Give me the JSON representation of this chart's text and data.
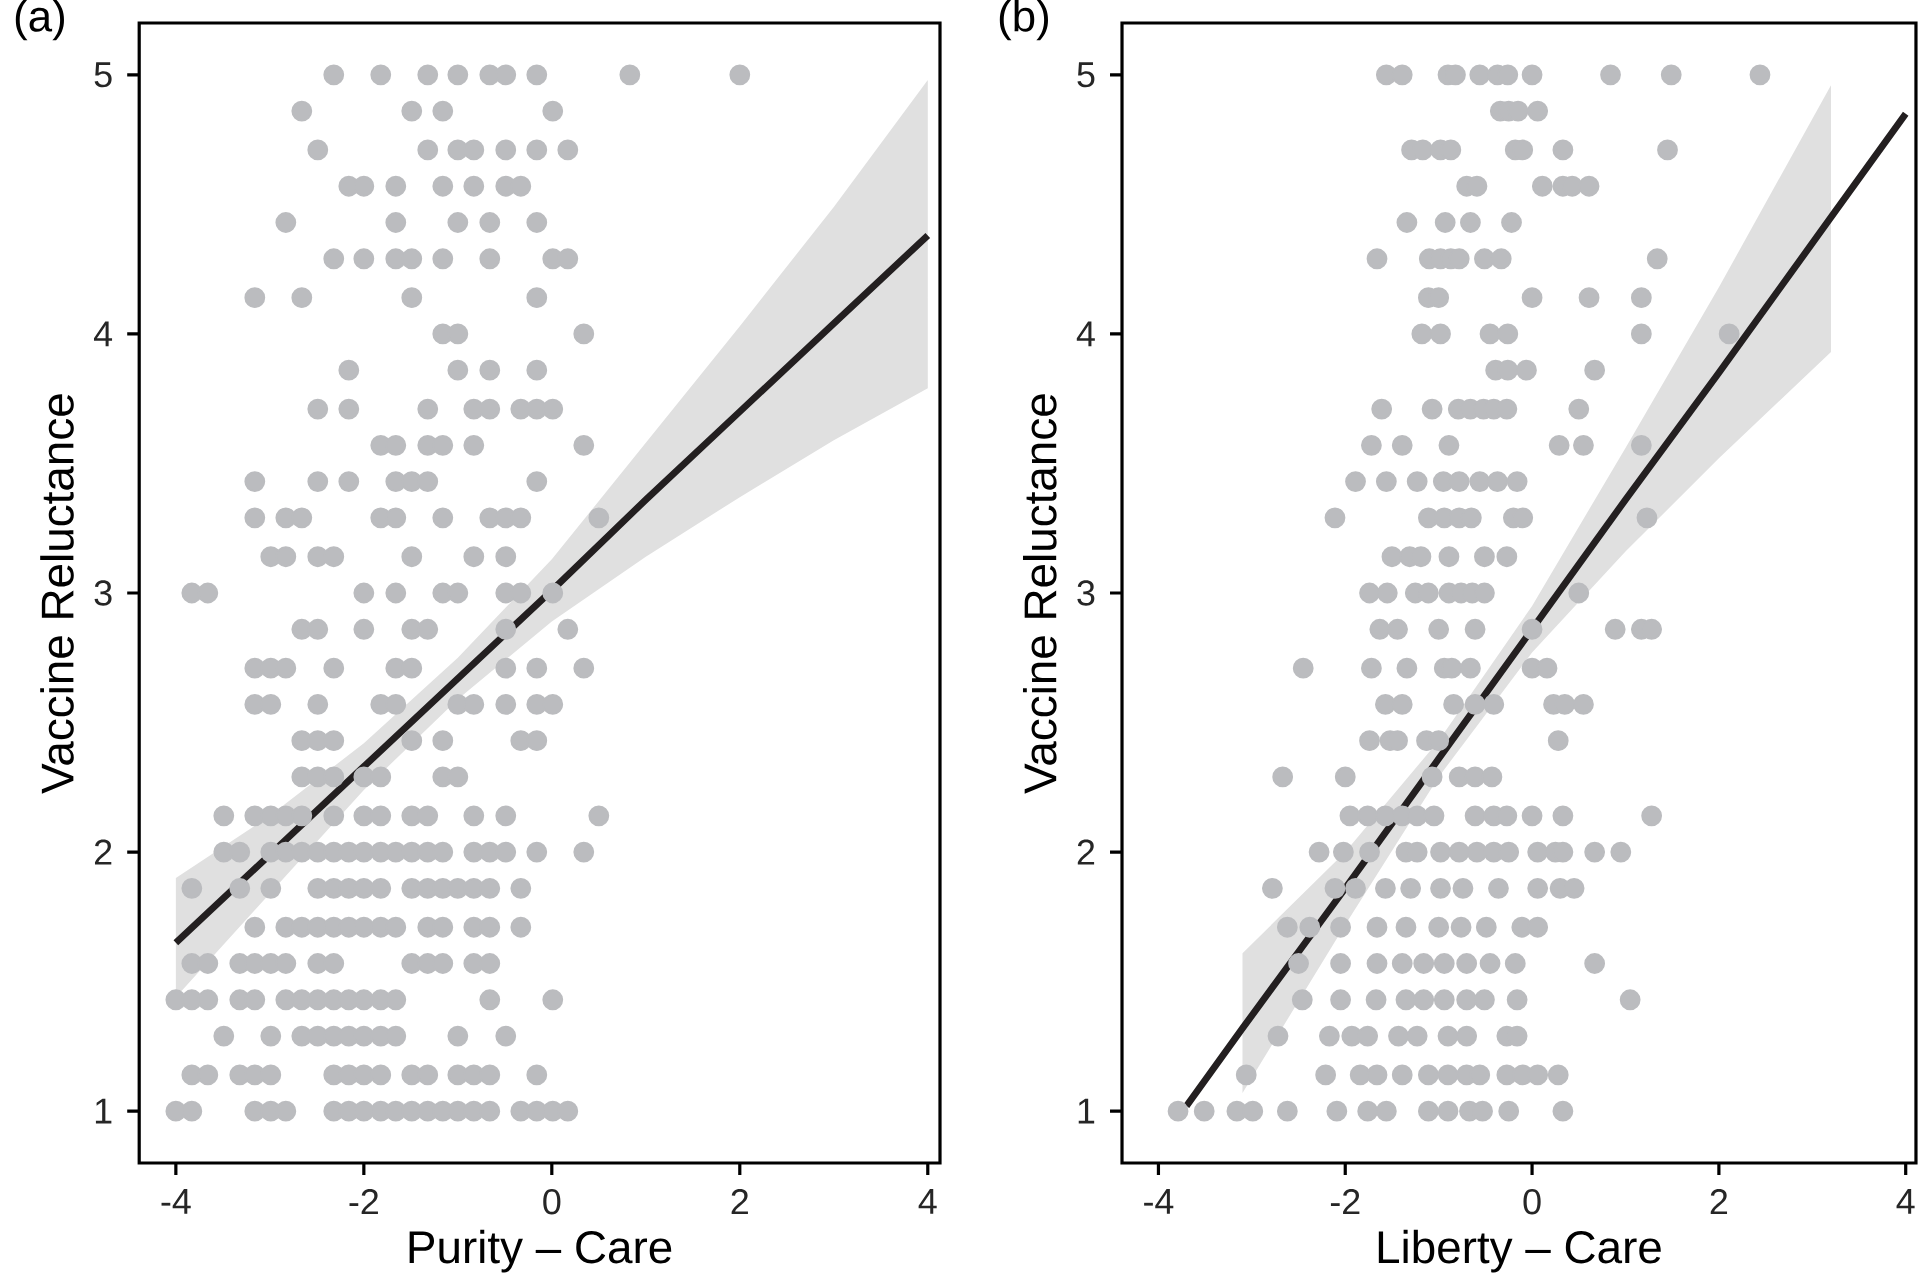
{
  "chart_data": [
    {
      "type": "scatter",
      "title": "(a)",
      "xlabel": "Purity – Care",
      "ylabel": "Vaccine Reluctance",
      "xlim": [
        -4.39,
        4.13
      ],
      "ylim": [
        0.8,
        5.2
      ],
      "xticks": [
        -4,
        -2,
        0,
        2,
        4
      ],
      "yticks": [
        1,
        2,
        3,
        4,
        5
      ],
      "grid": false,
      "marker": "circle",
      "series": [
        {
          "type": "scatter",
          "color": "#bbbcbf",
          "x": [
            -2.32,
            -1.82,
            -1.32,
            -1.0,
            -0.66,
            -0.49,
            -0.16,
            0.83,
            2.0,
            -2.66,
            -1.49,
            -1.16,
            0.01,
            -2.49,
            -1.32,
            -1.0,
            -0.83,
            -0.49,
            -0.16,
            0.17,
            -2.16,
            -2.0,
            -1.66,
            -1.16,
            -0.83,
            -0.49,
            -0.33,
            -2.83,
            -1.66,
            -1.0,
            -0.66,
            -0.16,
            -2.32,
            -2.0,
            -1.66,
            -1.49,
            -1.16,
            -0.66,
            0.01,
            0.17,
            -3.16,
            -2.66,
            -1.49,
            -0.16,
            -1.16,
            -1.0,
            0.34,
            -2.16,
            -1.0,
            -0.66,
            -0.16,
            -2.49,
            -2.16,
            -1.32,
            -0.83,
            -0.66,
            -0.33,
            -0.16,
            0.01,
            -1.82,
            -1.66,
            -1.32,
            -1.16,
            -0.83,
            0.34,
            -3.16,
            -2.49,
            -2.16,
            -1.66,
            -1.49,
            -1.32,
            -0.16,
            -3.16,
            -2.83,
            -2.66,
            -1.82,
            -1.66,
            -1.16,
            -0.66,
            -0.49,
            -0.33,
            0.5,
            -2.99,
            -2.83,
            -2.49,
            -2.32,
            -1.49,
            -0.83,
            -0.49,
            -3.83,
            -3.66,
            -2.0,
            -1.66,
            -1.16,
            -1.0,
            -0.49,
            -0.33,
            0.01,
            -2.66,
            -2.49,
            -2.0,
            -1.49,
            -1.32,
            -0.49,
            0.17,
            -3.16,
            -2.99,
            -2.83,
            -2.32,
            -1.66,
            -1.49,
            -0.49,
            -0.16,
            0.34,
            -3.16,
            -2.99,
            -2.49,
            -1.82,
            -1.66,
            -1.0,
            -0.83,
            -0.49,
            -0.16,
            0.01,
            -2.66,
            -2.49,
            -2.32,
            -1.49,
            -1.16,
            -0.33,
            -0.16,
            -2.66,
            -2.49,
            -2.32,
            -2.0,
            -1.82,
            -1.16,
            -1.0,
            -3.49,
            -3.16,
            -2.99,
            -2.83,
            -2.66,
            -2.32,
            -2.0,
            -1.82,
            -1.49,
            -1.32,
            -0.83,
            -0.49,
            0.5,
            -3.49,
            -3.32,
            -2.99,
            -2.83,
            -2.66,
            -2.49,
            -2.32,
            -2.16,
            -2.0,
            -1.82,
            -1.66,
            -1.49,
            -1.32,
            -1.16,
            -0.83,
            -0.66,
            -0.49,
            -0.16,
            0.34,
            -3.83,
            -3.32,
            -2.99,
            -2.49,
            -2.32,
            -2.16,
            -2.0,
            -1.82,
            -1.49,
            -1.32,
            -1.16,
            -1.0,
            -0.83,
            -0.66,
            -0.33,
            -3.16,
            -2.83,
            -2.66,
            -2.49,
            -2.32,
            -2.16,
            -2.0,
            -1.82,
            -1.66,
            -1.32,
            -1.16,
            -0.83,
            -0.66,
            -0.33,
            -3.83,
            -3.66,
            -3.32,
            -3.16,
            -2.99,
            -2.83,
            -2.49,
            -2.32,
            -1.49,
            -1.32,
            -1.16,
            -0.83,
            -0.66,
            -4.0,
            -3.83,
            -3.66,
            -3.32,
            -3.16,
            -2.83,
            -2.66,
            -2.49,
            -2.32,
            -2.16,
            -2.0,
            -1.82,
            -1.66,
            -0.66,
            0.01,
            -3.49,
            -2.99,
            -2.66,
            -2.49,
            -2.32,
            -2.16,
            -2.0,
            -1.82,
            -1.66,
            -1.0,
            -0.49,
            -3.83,
            -3.66,
            -3.32,
            -3.16,
            -2.99,
            -2.32,
            -2.16,
            -2.0,
            -1.82,
            -1.49,
            -1.32,
            -1.0,
            -0.83,
            -0.66,
            -0.16,
            -4.0,
            -3.83,
            -3.16,
            -2.99,
            -2.83,
            -2.32,
            -2.16,
            -2.0,
            -1.82,
            -1.66,
            -1.49,
            -1.32,
            -1.16,
            -1.0,
            -0.83,
            -0.66,
            -0.33,
            -0.16,
            0.01,
            0.17
          ],
          "values": [
            5,
            5,
            5,
            5,
            5,
            5,
            5,
            5,
            5,
            4.86,
            4.86,
            4.86,
            4.86,
            4.71,
            4.71,
            4.71,
            4.71,
            4.71,
            4.71,
            4.71,
            4.57,
            4.57,
            4.57,
            4.57,
            4.57,
            4.57,
            4.57,
            4.43,
            4.43,
            4.43,
            4.43,
            4.43,
            4.29,
            4.29,
            4.29,
            4.29,
            4.29,
            4.29,
            4.29,
            4.29,
            4.14,
            4.14,
            4.14,
            4.14,
            4,
            4,
            4,
            3.86,
            3.86,
            3.86,
            3.86,
            3.71,
            3.71,
            3.71,
            3.71,
            3.71,
            3.71,
            3.71,
            3.71,
            3.57,
            3.57,
            3.57,
            3.57,
            3.57,
            3.57,
            3.43,
            3.43,
            3.43,
            3.43,
            3.43,
            3.43,
            3.43,
            3.29,
            3.29,
            3.29,
            3.29,
            3.29,
            3.29,
            3.29,
            3.29,
            3.29,
            3.29,
            3.14,
            3.14,
            3.14,
            3.14,
            3.14,
            3.14,
            3.14,
            3,
            3,
            3,
            3,
            3,
            3,
            3,
            3,
            3,
            2.86,
            2.86,
            2.86,
            2.86,
            2.86,
            2.86,
            2.86,
            2.71,
            2.71,
            2.71,
            2.71,
            2.71,
            2.71,
            2.71,
            2.71,
            2.71,
            2.57,
            2.57,
            2.57,
            2.57,
            2.57,
            2.57,
            2.57,
            2.57,
            2.57,
            2.57,
            2.43,
            2.43,
            2.43,
            2.43,
            2.43,
            2.43,
            2.43,
            2.29,
            2.29,
            2.29,
            2.29,
            2.29,
            2.29,
            2.29,
            2.14,
            2.14,
            2.14,
            2.14,
            2.14,
            2.14,
            2.14,
            2.14,
            2.14,
            2.14,
            2.14,
            2.14,
            2.14,
            2,
            2,
            2,
            2,
            2,
            2,
            2,
            2,
            2,
            2,
            2,
            2,
            2,
            2,
            2,
            2,
            2,
            2,
            2,
            1.86,
            1.86,
            1.86,
            1.86,
            1.86,
            1.86,
            1.86,
            1.86,
            1.86,
            1.86,
            1.86,
            1.86,
            1.86,
            1.86,
            1.86,
            1.71,
            1.71,
            1.71,
            1.71,
            1.71,
            1.71,
            1.71,
            1.71,
            1.71,
            1.71,
            1.71,
            1.71,
            1.71,
            1.71,
            1.57,
            1.57,
            1.57,
            1.57,
            1.57,
            1.57,
            1.57,
            1.57,
            1.57,
            1.57,
            1.57,
            1.57,
            1.57,
            1.43,
            1.43,
            1.43,
            1.43,
            1.43,
            1.43,
            1.43,
            1.43,
            1.43,
            1.43,
            1.43,
            1.43,
            1.43,
            1.43,
            1.43,
            1.29,
            1.29,
            1.29,
            1.29,
            1.29,
            1.29,
            1.29,
            1.29,
            1.29,
            1.29,
            1.29,
            1.14,
            1.14,
            1.14,
            1.14,
            1.14,
            1.14,
            1.14,
            1.14,
            1.14,
            1.14,
            1.14,
            1.14,
            1.14,
            1.14,
            1.14,
            1,
            1,
            1,
            1,
            1,
            1,
            1,
            1,
            1,
            1,
            1,
            1,
            1,
            1,
            1,
            1,
            1,
            1,
            1,
            1
          ]
        },
        {
          "type": "line",
          "color": "#231f20",
          "line_style": "solid",
          "marker": "none",
          "x": [
            -4,
            -3,
            -2,
            -1,
            0,
            1,
            2,
            3,
            4
          ],
          "values": [
            1.65,
            1.99,
            2.33,
            2.67,
            3.01,
            3.36,
            3.7,
            4.04,
            4.38
          ],
          "lower": [
            1.44,
            1.84,
            2.24,
            2.59,
            2.89,
            3.14,
            3.37,
            3.59,
            3.79
          ],
          "upper": [
            1.9,
            2.14,
            2.42,
            2.75,
            3.13,
            3.58,
            4.03,
            4.49,
            4.98
          ]
        }
      ]
    },
    {
      "type": "scatter",
      "title": "(b)",
      "xlabel": "Liberty – Care",
      "ylabel": "Vaccine Reluctance",
      "xlim": [
        -4.39,
        4.11
      ],
      "ylim": [
        0.8,
        5.2
      ],
      "xticks": [
        -4,
        -2,
        0,
        2,
        4
      ],
      "yticks": [
        1,
        2,
        3,
        4,
        5
      ],
      "grid": false,
      "marker": "circle",
      "series": [
        {
          "type": "scatter",
          "color": "#bbbcbf",
          "x": [
            -1.56,
            -1.39,
            -0.9,
            -0.82,
            -0.56,
            -0.37,
            -0.26,
            0.0,
            0.84,
            1.49,
            2.44,
            -0.34,
            -0.25,
            -0.15,
            0.06,
            -1.29,
            -1.17,
            -0.98,
            -0.87,
            -0.18,
            -0.1,
            0.33,
            1.45,
            -0.7,
            -0.59,
            0.11,
            0.33,
            0.43,
            0.61,
            -1.34,
            -0.93,
            -0.66,
            -0.22,
            -1.66,
            -1.1,
            -0.98,
            -0.87,
            -0.78,
            -0.51,
            -0.33,
            1.34,
            -1.11,
            -1.0,
            0.0,
            0.61,
            1.17,
            -1.18,
            -0.98,
            -0.45,
            -0.26,
            1.17,
            2.11,
            -0.39,
            -0.26,
            -0.06,
            0.67,
            -1.61,
            -1.07,
            -0.79,
            -0.66,
            -0.52,
            -0.41,
            -0.27,
            0.5,
            -1.72,
            -1.39,
            -0.89,
            0.29,
            0.55,
            1.17,
            -1.89,
            -1.56,
            -1.23,
            -0.95,
            -0.78,
            -0.56,
            -0.37,
            -0.16,
            -2.11,
            -1.11,
            -0.94,
            -0.78,
            -0.65,
            -0.2,
            -0.1,
            1.23,
            -1.5,
            -1.31,
            -1.19,
            -0.89,
            -0.51,
            -0.27,
            -1.74,
            -1.55,
            -1.25,
            -1.11,
            -0.89,
            -0.76,
            -0.64,
            -0.51,
            0.5,
            -1.63,
            -1.44,
            -1.0,
            -0.61,
            0.0,
            0.89,
            1.17,
            1.28,
            -2.45,
            -1.72,
            -1.34,
            -0.94,
            -0.86,
            -0.66,
            0.0,
            0.16,
            -1.57,
            -1.39,
            -0.84,
            -0.61,
            -0.41,
            0.23,
            0.35,
            0.55,
            -1.74,
            -1.52,
            -1.44,
            -1.13,
            -1.0,
            0.28,
            -2.67,
            -2.0,
            -1.07,
            -0.78,
            -0.61,
            -0.43,
            -1.95,
            -1.76,
            -1.57,
            -1.39,
            -1.23,
            -1.05,
            -0.61,
            -0.41,
            -0.27,
            0.0,
            0.33,
            1.28,
            -2.28,
            -2.02,
            -1.74,
            -1.35,
            -1.23,
            -0.98,
            -0.78,
            -0.59,
            -0.41,
            -0.25,
            0.06,
            0.25,
            0.33,
            0.67,
            0.95,
            -2.78,
            -2.11,
            -1.89,
            -1.57,
            -1.3,
            -0.98,
            -0.74,
            -0.36,
            0.06,
            0.3,
            0.45,
            -2.62,
            -2.38,
            -2.05,
            -1.66,
            -1.35,
            -1.0,
            -0.76,
            -0.49,
            -0.11,
            0.06,
            -2.5,
            -2.05,
            -1.66,
            -1.39,
            -1.16,
            -0.94,
            -0.7,
            -0.45,
            -0.18,
            0.67,
            -2.46,
            -2.05,
            -1.67,
            -1.35,
            -1.16,
            -0.94,
            -0.7,
            -0.51,
            -0.16,
            1.05,
            -2.72,
            -2.17,
            -1.93,
            -1.76,
            -1.43,
            -1.23,
            -0.9,
            -0.7,
            -0.27,
            -0.16,
            -3.06,
            -2.21,
            -1.84,
            -1.66,
            -1.39,
            -1.11,
            -0.9,
            -0.7,
            -0.56,
            -0.27,
            -0.1,
            0.06,
            0.28,
            -3.79,
            -3.51,
            -3.16,
            -2.99,
            -2.62,
            -2.09,
            -1.76,
            -1.56,
            -1.11,
            -0.9,
            -0.67,
            -0.53,
            -0.25,
            0.33
          ],
          "values": [
            5,
            5,
            5,
            5,
            5,
            5,
            5,
            5,
            5,
            5,
            5,
            4.86,
            4.86,
            4.86,
            4.86,
            4.71,
            4.71,
            4.71,
            4.71,
            4.71,
            4.71,
            4.71,
            4.71,
            4.57,
            4.57,
            4.57,
            4.57,
            4.57,
            4.57,
            4.43,
            4.43,
            4.43,
            4.43,
            4.29,
            4.29,
            4.29,
            4.29,
            4.29,
            4.29,
            4.29,
            4.29,
            4.14,
            4.14,
            4.14,
            4.14,
            4.14,
            4,
            4,
            4,
            4,
            4,
            4,
            3.86,
            3.86,
            3.86,
            3.86,
            3.71,
            3.71,
            3.71,
            3.71,
            3.71,
            3.71,
            3.71,
            3.71,
            3.57,
            3.57,
            3.57,
            3.57,
            3.57,
            3.57,
            3.43,
            3.43,
            3.43,
            3.43,
            3.43,
            3.43,
            3.43,
            3.43,
            3.29,
            3.29,
            3.29,
            3.29,
            3.29,
            3.29,
            3.29,
            3.29,
            3.14,
            3.14,
            3.14,
            3.14,
            3.14,
            3.14,
            3,
            3,
            3,
            3,
            3,
            3,
            3,
            3,
            3,
            2.86,
            2.86,
            2.86,
            2.86,
            2.86,
            2.86,
            2.86,
            2.86,
            2.71,
            2.71,
            2.71,
            2.71,
            2.71,
            2.71,
            2.71,
            2.71,
            2.57,
            2.57,
            2.57,
            2.57,
            2.57,
            2.57,
            2.57,
            2.57,
            2.43,
            2.43,
            2.43,
            2.43,
            2.43,
            2.43,
            2.29,
            2.29,
            2.29,
            2.29,
            2.29,
            2.29,
            2.14,
            2.14,
            2.14,
            2.14,
            2.14,
            2.14,
            2.14,
            2.14,
            2.14,
            2.14,
            2.14,
            2.14,
            2,
            2,
            2,
            2,
            2,
            2,
            2,
            2,
            2,
            2,
            2,
            2,
            2,
            2,
            2,
            1.86,
            1.86,
            1.86,
            1.86,
            1.86,
            1.86,
            1.86,
            1.86,
            1.86,
            1.86,
            1.86,
            1.71,
            1.71,
            1.71,
            1.71,
            1.71,
            1.71,
            1.71,
            1.71,
            1.71,
            1.71,
            1.57,
            1.57,
            1.57,
            1.57,
            1.57,
            1.57,
            1.57,
            1.57,
            1.57,
            1.57,
            1.43,
            1.43,
            1.43,
            1.43,
            1.43,
            1.43,
            1.43,
            1.43,
            1.43,
            1.43,
            1.29,
            1.29,
            1.29,
            1.29,
            1.29,
            1.29,
            1.29,
            1.29,
            1.29,
            1.29,
            1.14,
            1.14,
            1.14,
            1.14,
            1.14,
            1.14,
            1.14,
            1.14,
            1.14,
            1.14,
            1.14,
            1.14,
            1.14,
            1,
            1,
            1,
            1,
            1,
            1,
            1,
            1,
            1,
            1,
            1,
            1,
            1,
            1
          ]
        },
        {
          "type": "line",
          "color": "#231f20",
          "line_style": "solid",
          "marker": "none",
          "x": [
            -3.7,
            -3.1,
            -2,
            -1,
            0,
            1,
            2,
            3.2,
            4
          ],
          "values": [
            1.02,
            1.32,
            1.86,
            2.36,
            2.86,
            3.36,
            3.85,
            4.45,
            4.85
          ],
          "lower": [
            null,
            1.07,
            1.72,
            2.29,
            2.77,
            3.16,
            3.52,
            3.93,
            null
          ],
          "upper": [
            null,
            1.61,
            2.0,
            2.43,
            2.95,
            3.56,
            4.18,
            4.96,
            null
          ]
        }
      ]
    }
  ]
}
